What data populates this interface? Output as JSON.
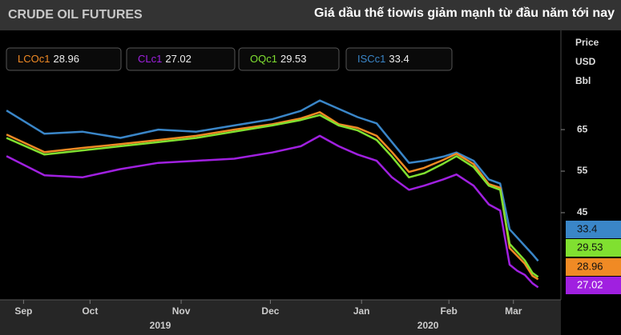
{
  "chart_data": {
    "type": "line",
    "title": "CRUDE OIL FUTURES",
    "subtitle": "Giá dầu thế tiowis giảm mạnh từ đầu năm tới nay",
    "y_axis_label": [
      "Price",
      "USD",
      "Bbl"
    ],
    "x": [
      0,
      2,
      4,
      6,
      8,
      10,
      12,
      14,
      15.5,
      16.5,
      17.5,
      18.5,
      19.5,
      20.3,
      21.2,
      22,
      23,
      23.7,
      24.6,
      25.4,
      26,
      26.5,
      26.9,
      27.3,
      27.7,
      28
    ],
    "series": [
      {
        "name": "LCOc1",
        "color": "#f08a24",
        "values": [
          63.8,
          59.6,
          60.6,
          61.5,
          62.5,
          63.5,
          65,
          66.3,
          67.7,
          69.2,
          66.3,
          65.4,
          63.5,
          59.6,
          54.8,
          55.8,
          57.7,
          59.2,
          56.7,
          51.9,
          51,
          36.5,
          34.6,
          32.7,
          29.8,
          28.96
        ]
      },
      {
        "name": "CLc1",
        "color": "#a020e0",
        "values": [
          58.6,
          54,
          53.5,
          55.5,
          57,
          57.5,
          58,
          59.5,
          61,
          63.5,
          61,
          59,
          57.5,
          53.5,
          50.5,
          51.5,
          53,
          54.2,
          51.5,
          47,
          45.5,
          32.5,
          31,
          30,
          28,
          27.02
        ]
      },
      {
        "name": "OQc1",
        "color": "#80e030",
        "values": [
          63,
          59,
          60,
          61,
          62,
          63,
          64.5,
          66,
          67.3,
          68.5,
          66,
          64.8,
          62.5,
          58.5,
          53.5,
          54.5,
          56.8,
          58.6,
          56,
          51.5,
          50.5,
          37.5,
          35.5,
          33.5,
          30.5,
          29.53
        ]
      },
      {
        "name": "ISCc1",
        "color": "#3a86c8",
        "values": [
          69.6,
          64,
          64.5,
          63,
          65,
          64.5,
          66,
          67.5,
          69.5,
          72,
          70,
          68,
          66.5,
          62,
          57,
          57.5,
          58.5,
          59.5,
          57.5,
          53,
          52,
          41,
          39,
          37,
          35,
          33.4
        ]
      }
    ],
    "xlim": [
      -0.34,
      29.2
    ],
    "xticks": [
      {
        "value": 0.9,
        "label": "Sep"
      },
      {
        "value": 4.4,
        "label": "Oct"
      },
      {
        "value": 9.2,
        "label": "Nov"
      },
      {
        "value": 13.9,
        "label": "Dec"
      },
      {
        "value": 18.7,
        "label": "Jan"
      },
      {
        "value": 23.3,
        "label": "Feb"
      },
      {
        "value": 26.7,
        "label": "Mar"
      }
    ],
    "year_ticks": [
      {
        "value": 8.1,
        "label": "2019"
      },
      {
        "value": 22.2,
        "label": "2020"
      }
    ],
    "ylim": [
      24.6,
      88.5
    ],
    "yticks": [
      45,
      55,
      65
    ]
  }
}
